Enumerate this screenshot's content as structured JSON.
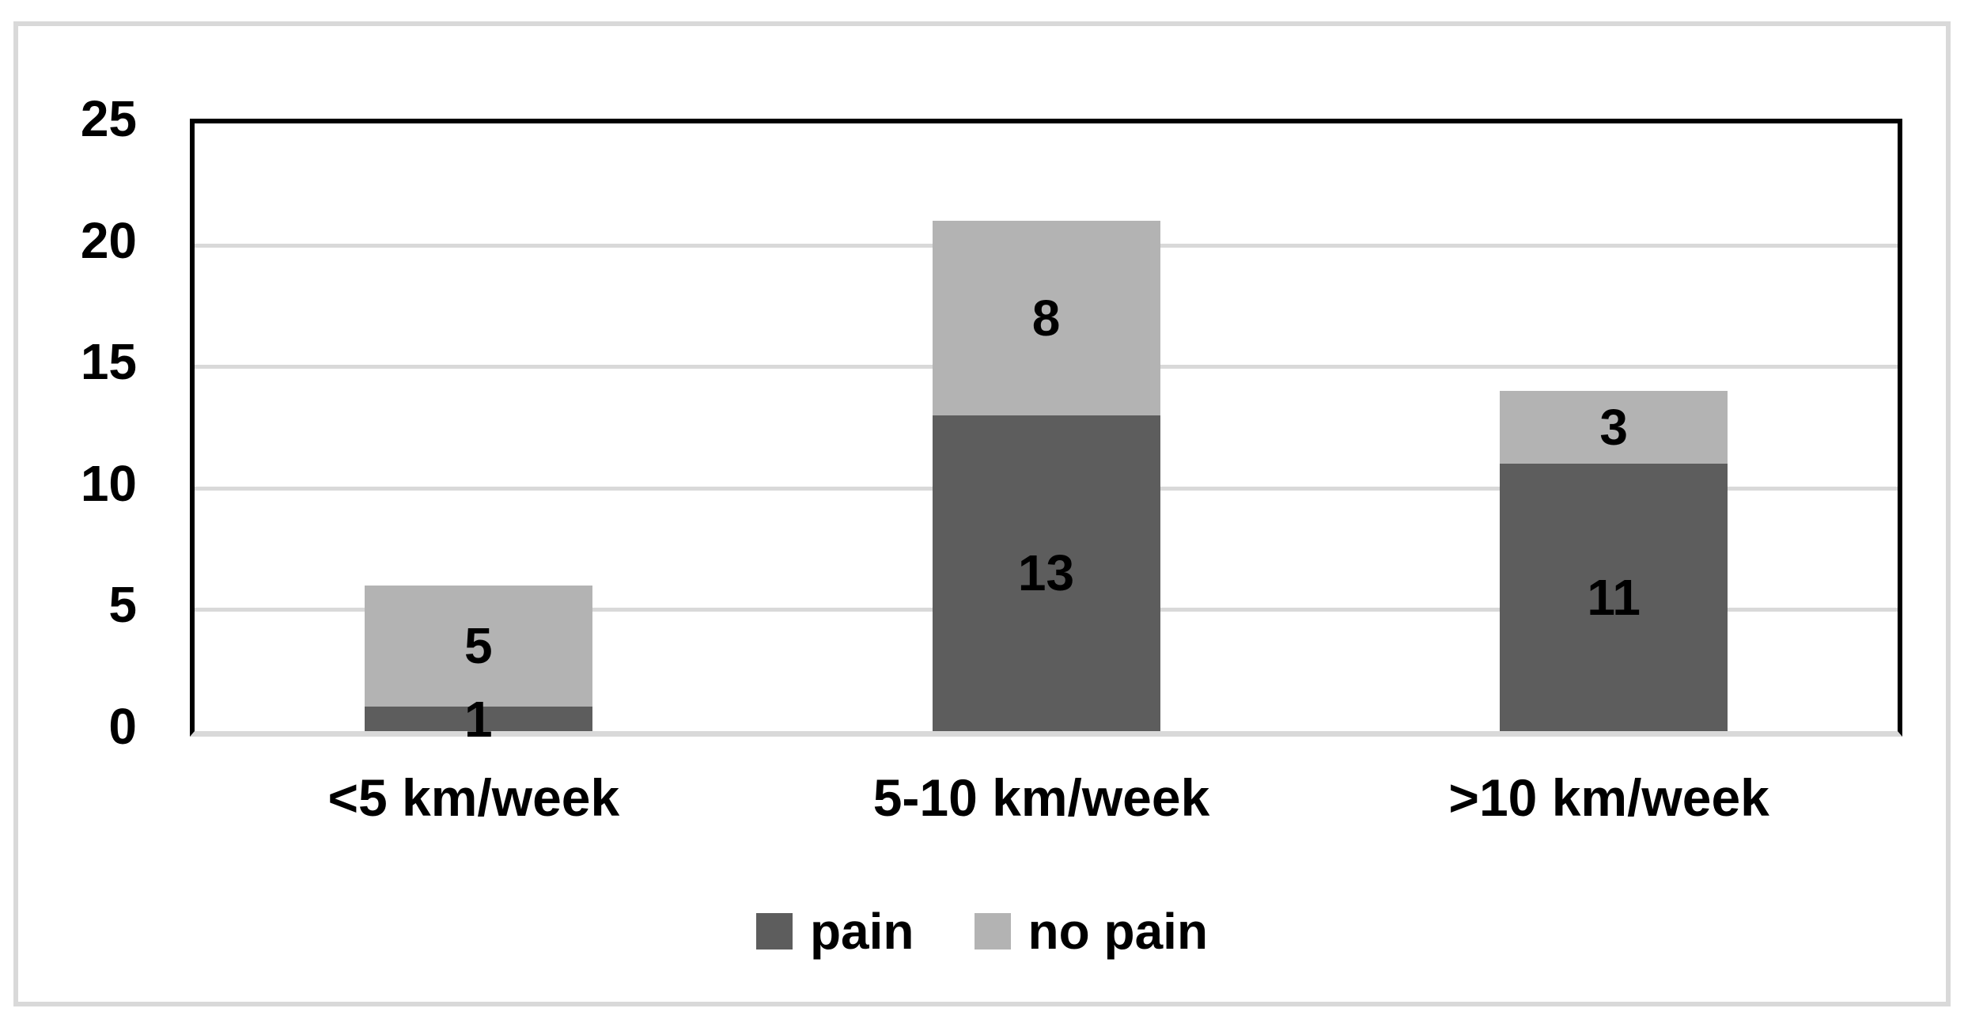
{
  "chart_data": {
    "type": "bar",
    "stacked": true,
    "title": "",
    "xlabel": "",
    "ylabel": "",
    "categories": [
      "<5 km/week",
      "5-10 km/week",
      ">10 km/week"
    ],
    "series": [
      {
        "name": "pain",
        "color": "#5d5d5d",
        "values": [
          1,
          13,
          11
        ]
      },
      {
        "name": "no pain",
        "color": "#b3b3b3",
        "values": [
          5,
          8,
          3
        ]
      }
    ],
    "totals": [
      6,
      21,
      14
    ],
    "ylim": [
      0,
      25
    ],
    "yticks": [
      "0",
      "5",
      "10",
      "15",
      "20",
      "25"
    ],
    "grid": true,
    "data_labels": true,
    "legend_position": "bottom-center",
    "colors": {
      "grid_line": "#d9d9d9",
      "plot_border": "#000000",
      "frame_border": "#d9d9d9",
      "text": "#000000",
      "background": "#ffffff"
    }
  }
}
